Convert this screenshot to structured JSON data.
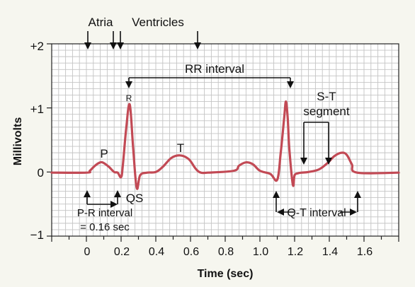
{
  "title": "",
  "axes": {
    "ylabel": "Millivolts",
    "xlabel": "Time (sec)",
    "y_ticks": [
      "+2",
      "+1",
      "0",
      "−1"
    ],
    "x_ticks": [
      "0",
      "0.2",
      "0.4",
      "0.6",
      "0.8",
      "1.0",
      "1.2",
      "1.4",
      "1.6"
    ]
  },
  "labels": {
    "atria": "Atria",
    "ventricles": "Ventricles",
    "rr_interval": "RR interval",
    "st_line1": "S-T",
    "st_line2": "segment",
    "p": "P",
    "r": "R",
    "qs": "QS",
    "t": "T",
    "pr_line1": "P-R interval",
    "pr_line2": "= 0.16 sec",
    "qt": "Q-T interval"
  },
  "colors": {
    "background": "#f6f6ef",
    "plot_bg": "#ffffff",
    "grid": "#c4c4c4",
    "trace": "#c24a55",
    "annot": "#111111"
  },
  "chart_data": {
    "type": "line",
    "xlim": [
      -0.2,
      1.8
    ],
    "ylim": [
      -1,
      2
    ],
    "grid": true,
    "xlabel": "Time (sec)",
    "ylabel": "Millivolts",
    "series": [
      {
        "x": [
          -0.2,
          0.0,
          0.02,
          0.05,
          0.08,
          0.1,
          0.13,
          0.16,
          0.18,
          0.2,
          0.21,
          0.23,
          0.25,
          0.27,
          0.29,
          0.31,
          0.35,
          0.4,
          0.44,
          0.49,
          0.54,
          0.59,
          0.63,
          0.66,
          0.7,
          0.85,
          0.88,
          0.92,
          0.96,
          1.0,
          1.06,
          1.1,
          1.12,
          1.14,
          1.15,
          1.16,
          1.17,
          1.19,
          1.2,
          1.22,
          1.24,
          1.28,
          1.34,
          1.39,
          1.43,
          1.47,
          1.5,
          1.53,
          1.56,
          1.8
        ],
        "y": [
          -0.01,
          -0.01,
          0.02,
          0.1,
          0.15,
          0.14,
          0.08,
          0.0,
          -0.01,
          -0.08,
          0.1,
          0.7,
          1.05,
          0.35,
          -0.25,
          -0.05,
          -0.01,
          0.0,
          0.08,
          0.22,
          0.26,
          0.2,
          0.05,
          -0.01,
          -0.01,
          0.02,
          0.1,
          0.15,
          0.12,
          0.02,
          -0.03,
          -0.12,
          0.3,
          0.85,
          1.1,
          0.85,
          0.35,
          -0.2,
          -0.05,
          -0.02,
          -0.01,
          0.0,
          0.04,
          0.14,
          0.25,
          0.3,
          0.27,
          0.12,
          -0.01,
          -0.01
        ]
      }
    ]
  }
}
